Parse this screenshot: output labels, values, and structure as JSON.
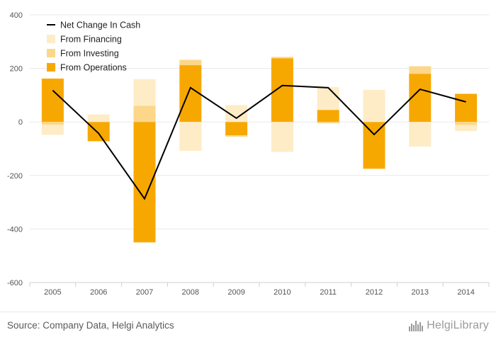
{
  "chart_data": {
    "type": "bar",
    "stacked": true,
    "categories": [
      "2005",
      "2006",
      "2007",
      "2008",
      "2009",
      "2010",
      "2011",
      "2012",
      "2013",
      "2014"
    ],
    "series": [
      {
        "name": "From Operations",
        "kind": "bar",
        "color": "#f7a800",
        "values": [
          162,
          -72,
          -450,
          212,
          -50,
          238,
          45,
          -175,
          180,
          105
        ]
      },
      {
        "name": "From Investing",
        "kind": "bar",
        "color": "#fcd78a",
        "values": [
          -10,
          0,
          60,
          20,
          -5,
          5,
          -5,
          0,
          28,
          -12
        ]
      },
      {
        "name": "From Financing",
        "kind": "bar",
        "color": "#feecc6",
        "values": [
          -38,
          28,
          100,
          -108,
          63,
          -112,
          85,
          120,
          -92,
          -22
        ]
      },
      {
        "name": "Net Change In Cash",
        "kind": "line",
        "color": "#000000",
        "values": [
          118,
          -43,
          -287,
          128,
          14,
          136,
          128,
          -47,
          122,
          75
        ]
      }
    ],
    "legend_order": [
      "Net Change In Cash",
      "From Financing",
      "From Investing",
      "From Operations"
    ],
    "legend_position": "top-left",
    "ylim": [
      -600,
      400
    ],
    "yticks": [
      -600,
      -400,
      -200,
      0,
      200,
      400
    ],
    "grid": true,
    "xlabel": "",
    "ylabel": "",
    "title": ""
  },
  "footer": {
    "source": "Source: Company Data, Helgi Analytics",
    "brand": "HelgiLibrary",
    "brand_logo_icon": "skyline-logo-icon"
  }
}
